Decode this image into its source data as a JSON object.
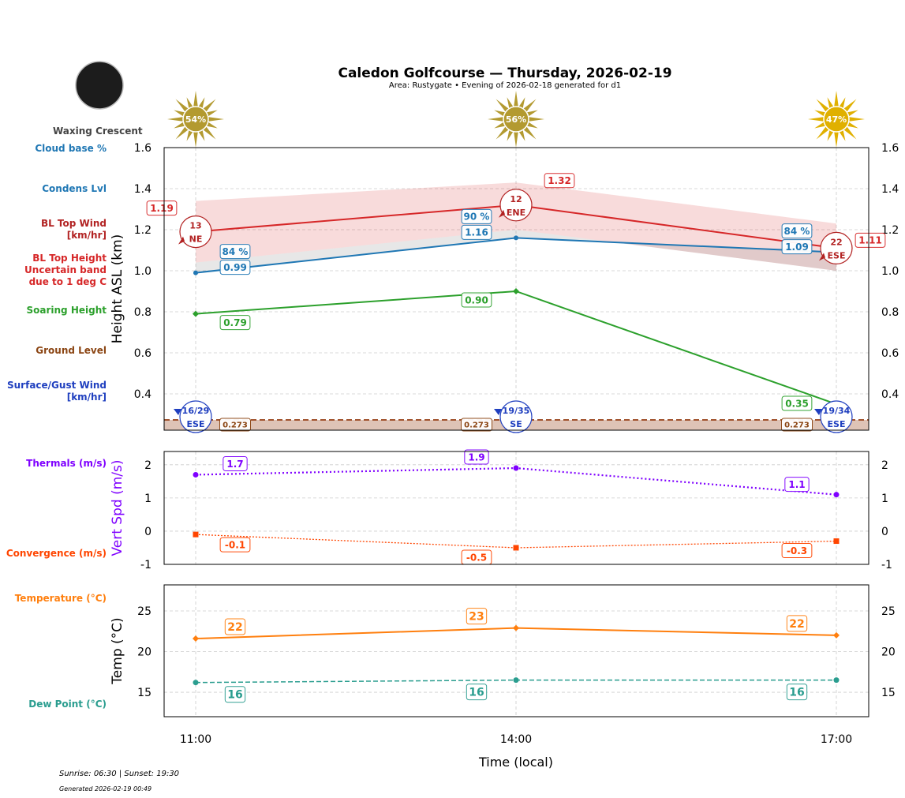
{
  "header": {
    "title": "Caledon Golfcourse — Thursday, 2026-02-19",
    "subtitle": "Area: Rustygate • Evening of 2026-02-18 generated for d1",
    "moon_phase": "Waxing Crescent"
  },
  "row_labels": [
    {
      "text": "Cloud base %",
      "color": "#1f77b4"
    },
    {
      "text": "Condens Lvl",
      "color": "#1f77b4"
    },
    {
      "text": "BL Top Wind\n[km/hr]",
      "color": "#b22222"
    },
    {
      "text": "BL Top Height\nUncertain band\ndue to 1 deg C",
      "color": "#d62728"
    },
    {
      "text": "Soaring Height",
      "color": "#2ca02c"
    },
    {
      "text": "Ground Level",
      "color": "#8b4513"
    },
    {
      "text": "Surface/Gust Wind\n[km/hr]",
      "color": "#1f3fbf"
    },
    {
      "text": "Thermals (m/s)",
      "color": "#7f00ff"
    },
    {
      "text": "Convergence (m/s)",
      "color": "#ff4500"
    },
    {
      "text": "Temperature (°C)",
      "color": "#ff7f0e"
    },
    {
      "text": "Dew Point (°C)",
      "color": "#2a9d8f"
    }
  ],
  "footer": {
    "sun": "Sunrise: 06:30 | Sunset: 19:30",
    "generated": "Generated 2026-02-19 00:49"
  },
  "chart_data": [
    {
      "type": "line",
      "ylabel": "Height ASL (km)",
      "ylim": [
        0.223,
        1.6
      ],
      "yticks": [
        0.4,
        0.6,
        0.8,
        1.0,
        1.2,
        1.4,
        1.6
      ],
      "grid": true,
      "x": [
        "11:00",
        "14:00",
        "17:00"
      ],
      "sun_percent": [
        "54%",
        "56%",
        "47%"
      ],
      "series": [
        {
          "key": "bl_top",
          "values": [
            1.19,
            1.32,
            1.11
          ],
          "labels": [
            "1.19",
            "1.32",
            "1.11"
          ],
          "color": "#d62728",
          "band_low": [
            1.04,
            1.2,
            1.0
          ],
          "band_high": [
            1.34,
            1.43,
            1.23
          ]
        },
        {
          "key": "condens",
          "values": [
            0.99,
            1.16,
            1.09
          ],
          "labels": [
            "0.99",
            "1.16",
            "1.09"
          ],
          "cloud_pct": [
            "84 %",
            "90 %",
            "84 %"
          ],
          "color": "#1f77b4"
        },
        {
          "key": "soaring",
          "values": [
            0.79,
            0.9,
            0.35
          ],
          "labels": [
            "0.79",
            "0.90",
            "0.35"
          ],
          "color": "#2ca02c"
        },
        {
          "key": "ground",
          "values": [
            0.273,
            0.273,
            0.273
          ],
          "labels": [
            "0.273",
            "0.273",
            "0.273"
          ],
          "color": "#a0522d"
        }
      ],
      "bl_wind": [
        {
          "speed": "13",
          "dir": "NE"
        },
        {
          "speed": "12",
          "dir": "ENE"
        },
        {
          "speed": "22",
          "dir": "ESE"
        }
      ],
      "surface_wind": [
        {
          "speed": "16/29",
          "dir": "ESE"
        },
        {
          "speed": "19/35",
          "dir": "SE"
        },
        {
          "speed": "19/34",
          "dir": "ESE"
        }
      ]
    },
    {
      "type": "line",
      "ylabel": "Vert Spd (m/s)",
      "ylim": [
        -1,
        2.4
      ],
      "yticks": [
        -1,
        0,
        1,
        2
      ],
      "grid": true,
      "x": [
        "11:00",
        "14:00",
        "17:00"
      ],
      "series": [
        {
          "key": "thermals",
          "values": [
            1.7,
            1.9,
            1.1
          ],
          "labels": [
            "1.7",
            "1.9",
            "1.1"
          ],
          "color": "#7f00ff"
        },
        {
          "key": "convergence",
          "values": [
            -0.1,
            -0.5,
            -0.3
          ],
          "labels": [
            "-0.1",
            "-0.5",
            "-0.3"
          ],
          "color": "#ff4500"
        }
      ]
    },
    {
      "type": "line",
      "ylabel": "Temp (°C)",
      "xlabel": "Time (local)",
      "ylim": [
        12,
        28.2
      ],
      "yticks": [
        15,
        20,
        25
      ],
      "grid": true,
      "x": [
        "11:00",
        "14:00",
        "17:00"
      ],
      "series": [
        {
          "key": "temperature",
          "values": [
            21.6,
            22.9,
            22.0
          ],
          "labels": [
            "22",
            "23",
            "22"
          ],
          "color": "#ff7f0e"
        },
        {
          "key": "dewpoint",
          "values": [
            16.2,
            16.5,
            16.5
          ],
          "labels": [
            "16",
            "16",
            "16"
          ],
          "color": "#2a9d8f"
        }
      ]
    }
  ]
}
